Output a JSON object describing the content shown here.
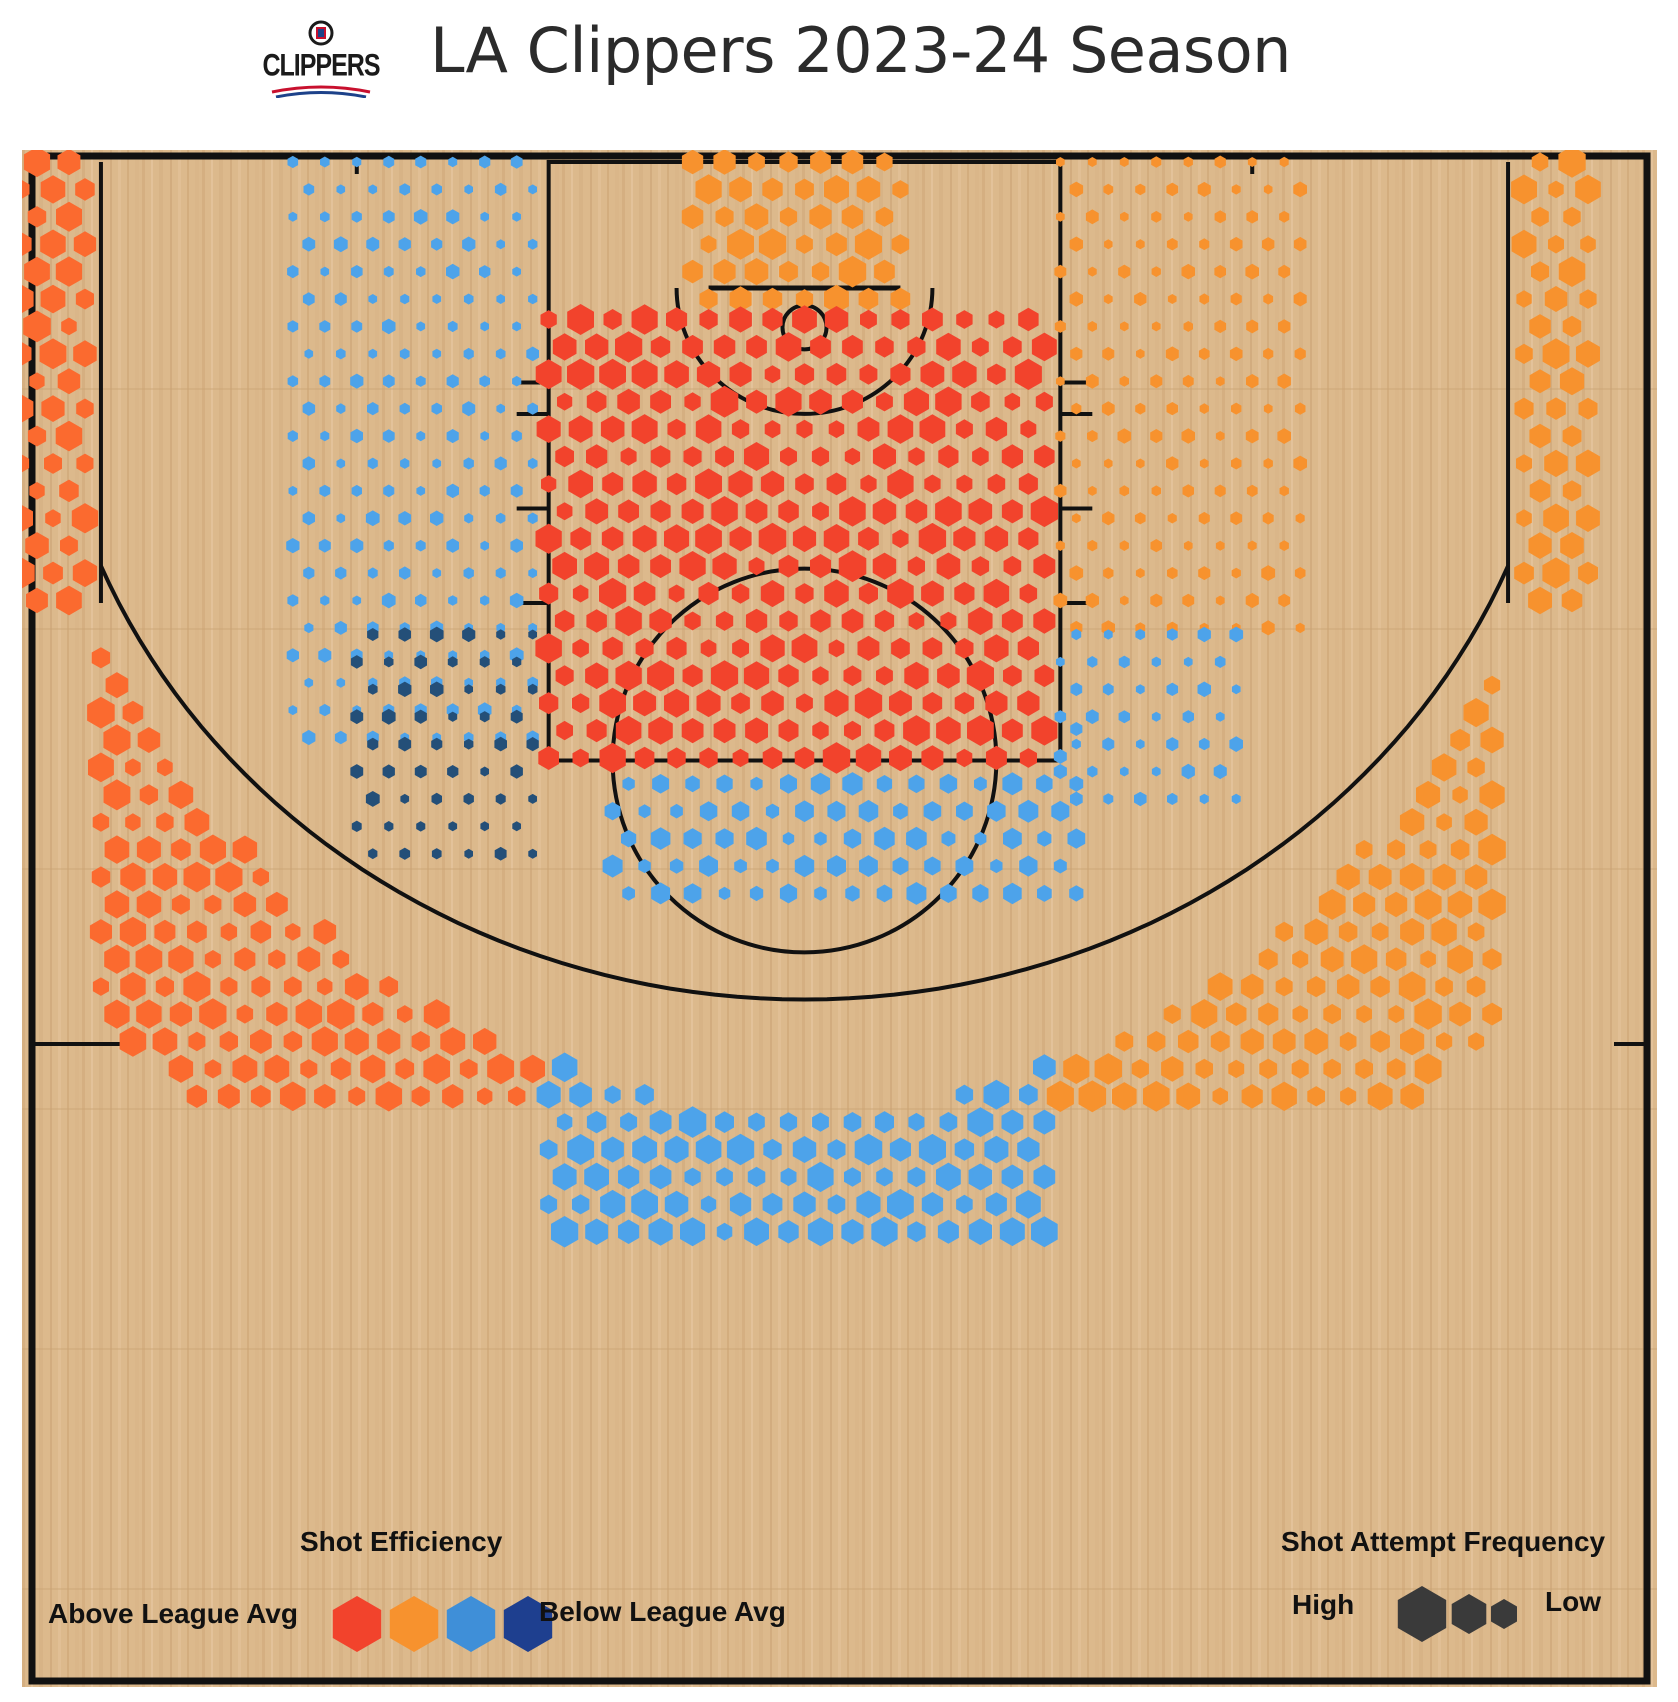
{
  "header": {
    "logo_text": "CLIPPERS",
    "title": "LA Clippers 2023-24 Season"
  },
  "colors": {
    "court_wood": "#dcb98c",
    "court_lines": "#111111",
    "well_above_avg": "#f2432c",
    "above_avg": "#f7922e",
    "slightly_above_avg": "#fb6a2f",
    "below_avg": "#4da3ea",
    "well_below_avg": "#244f78"
  },
  "legend": {
    "efficiency_title": "Shot Efficiency",
    "above_label": "Above League Avg",
    "below_label": "Below League Avg",
    "efficiency_swatches": [
      "#f2432c",
      "#f7922e",
      "#3f8fd8",
      "#1e3f8f"
    ],
    "frequency_title": "Shot Attempt Frequency",
    "high_label": "High",
    "low_label": "Low",
    "frequency_swatch_color": "#3a3a3a"
  },
  "chart_data": {
    "type": "heatmap",
    "description_units": "x in feet from basket (negative = left), y in feet from baseline",
    "xlim": [
      -25,
      25
    ],
    "ylim": [
      0,
      47
    ],
    "efficiency_scale": [
      "well_above",
      "above",
      "slightly_above",
      "below",
      "well_below"
    ],
    "frequency_scale": [
      "high",
      "low"
    ],
    "zones": [
      {
        "zone": "restricted-area",
        "x": [
          -3.5,
          3.5
        ],
        "y": [
          0,
          5
        ],
        "efficiency": "above",
        "frequency": "high"
      },
      {
        "zone": "paint-non-ra",
        "x": [
          -8,
          8
        ],
        "y": [
          5,
          19
        ],
        "efficiency": "well_above",
        "frequency": "high"
      },
      {
        "zone": "left-short-midrange",
        "x": [
          -16,
          -8
        ],
        "y": [
          0,
          19
        ],
        "efficiency": "below",
        "frequency": "low"
      },
      {
        "zone": "left-elbow-midrange",
        "x": [
          -14,
          -8
        ],
        "y": [
          15,
          22
        ],
        "efficiency": "well_below",
        "frequency": "low"
      },
      {
        "zone": "top-of-key-midrange",
        "x": [
          -6,
          9
        ],
        "y": [
          18,
          24
        ],
        "efficiency": "below",
        "frequency": "medium"
      },
      {
        "zone": "right-midrange",
        "x": [
          8,
          16
        ],
        "y": [
          0,
          15
        ],
        "efficiency": "above",
        "frequency": "low"
      },
      {
        "zone": "right-elbow-midrange",
        "x": [
          8,
          14
        ],
        "y": [
          15,
          21
        ],
        "efficiency": "below",
        "frequency": "low"
      },
      {
        "zone": "left-corner-three",
        "x": [
          -25,
          -22
        ],
        "y": [
          0,
          14
        ],
        "efficiency": "slightly_above",
        "frequency": "high"
      },
      {
        "zone": "left-wing-three",
        "x": [
          -22,
          -8
        ],
        "y": [
          14,
          30
        ],
        "efficiency": "slightly_above",
        "frequency": "high"
      },
      {
        "zone": "top-three",
        "x": [
          -8,
          8
        ],
        "y": [
          27,
          34
        ],
        "efficiency": "below",
        "frequency": "high"
      },
      {
        "zone": "right-wing-three",
        "x": [
          8,
          22
        ],
        "y": [
          14,
          30
        ],
        "efficiency": "above",
        "frequency": "high"
      },
      {
        "zone": "right-corner-three",
        "x": [
          22,
          25
        ],
        "y": [
          0,
          14
        ],
        "efficiency": "above",
        "frequency": "high"
      }
    ]
  }
}
